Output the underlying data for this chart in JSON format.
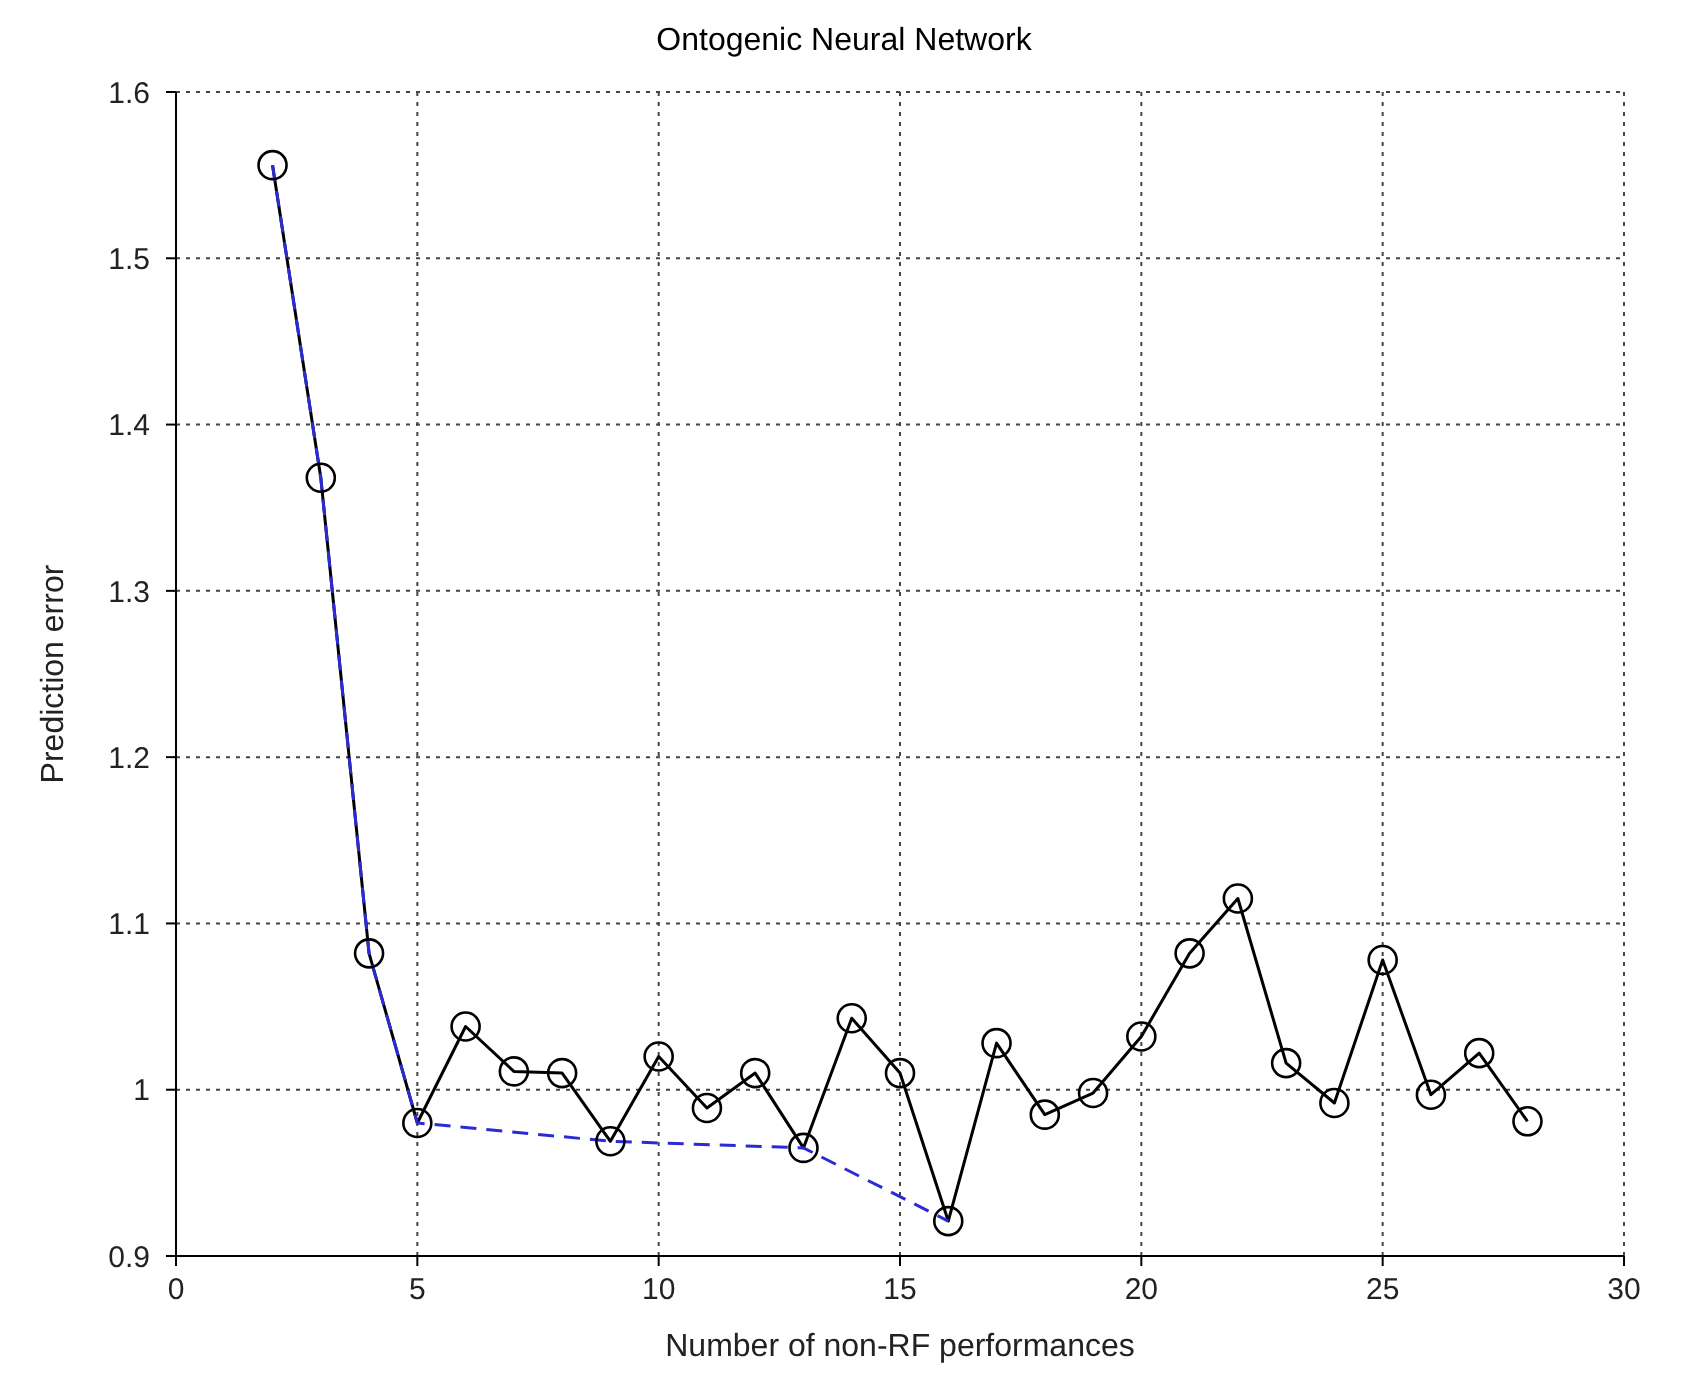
{
  "chart_data": {
    "type": "line",
    "title": "Ontogenic Neural Network",
    "xlabel": "Number of non-RF performances",
    "ylabel": "Prediction error",
    "xlim": [
      0,
      30
    ],
    "xticks": [
      0,
      5,
      10,
      15,
      20,
      25,
      30
    ],
    "ylim": [
      0.9,
      1.6
    ],
    "yticks": [
      0.9,
      1,
      1.1,
      1.2,
      1.3,
      1.4,
      1.5,
      1.6
    ],
    "grid": true,
    "series": [
      {
        "color": "#000000",
        "marker": "circle",
        "line_style": "solid",
        "x": [
          2,
          3,
          4,
          5,
          6,
          7,
          8,
          9,
          10,
          11,
          12,
          13,
          14,
          15,
          16,
          17,
          18,
          19,
          20,
          21,
          22,
          23,
          24,
          25,
          26,
          27,
          28
        ],
        "values": [
          1.556,
          1.368,
          1.082,
          0.98,
          1.038,
          1.011,
          1.01,
          0.969,
          1.02,
          0.989,
          1.01,
          0.965,
          1.043,
          1.01,
          0.921,
          1.028,
          0.985,
          0.998,
          1.032,
          1.082,
          1.115,
          1.016,
          0.992,
          1.078,
          0.997,
          1.022,
          0.981
        ]
      },
      {
        "color": "#2b2bd6",
        "marker": "none",
        "line_style": "dashed",
        "x": [
          2,
          3,
          4,
          5,
          9,
          13,
          16
        ],
        "values": [
          1.556,
          1.368,
          1.082,
          0.98,
          0.969,
          0.965,
          0.921
        ]
      }
    ]
  }
}
